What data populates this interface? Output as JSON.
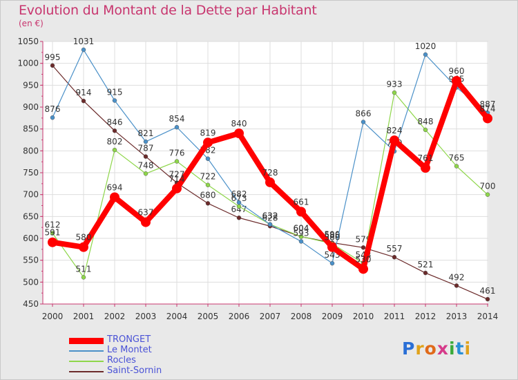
{
  "title": "Evolution du Montant de la Dette par Habitant",
  "subtitle": "(en €)",
  "logo": {
    "letters": [
      "P",
      "r",
      "o",
      "x",
      "i",
      "t",
      "i"
    ],
    "colors": [
      "#2a6fd6",
      "#e0a21a",
      "#e06a1a",
      "#d63a8a",
      "#3aaa3a",
      "#2a8fd6",
      "#e0a21a"
    ]
  },
  "chart_data": {
    "type": "line",
    "x": [
      "2000",
      "2001",
      "2002",
      "2003",
      "2004",
      "2005",
      "2006",
      "2007",
      "2008",
      "2009",
      "2010",
      "2011",
      "2012",
      "2013",
      "2014"
    ],
    "ylim": [
      450,
      1050
    ],
    "yticks": [
      450,
      500,
      550,
      600,
      650,
      700,
      750,
      800,
      850,
      900,
      950,
      1000,
      1050
    ],
    "grid": true,
    "legend_position": "bottom-left",
    "series": [
      {
        "name": "TRONGET",
        "color": "#ff0000",
        "values": [
          591,
          580,
          694,
          637,
          714,
          819,
          840,
          728,
          661,
          580,
          530,
          824,
          761,
          960,
          874
        ],
        "labels": [
          "591",
          "580",
          "694",
          "637",
          "714",
          "819",
          "840",
          "728",
          "661",
          "580",
          "530",
          "824",
          "761",
          "960",
          "874"
        ]
      },
      {
        "name": "Le Montet",
        "color": "#4a90c8",
        "values": [
          876,
          1031,
          915,
          821,
          854,
          782,
          682,
          632,
          593,
          543,
          866,
          799,
          1020,
          945,
          887
        ],
        "labels": [
          "876",
          "1031",
          "915",
          "821",
          "854",
          "782",
          "682",
          "632",
          "593",
          "543",
          "866",
          "799",
          "1020",
          "945",
          "887"
        ]
      },
      {
        "name": "Rocles",
        "color": "#8ed64a",
        "values": [
          612,
          511,
          802,
          748,
          776,
          722,
          673,
          632,
          604,
          588,
          543,
          933,
          848,
          765,
          700
        ],
        "labels": [
          "612",
          "511",
          "802",
          "748",
          "776",
          "722",
          "673",
          "632",
          "604",
          "588",
          "543",
          "933",
          "848",
          "765",
          "700"
        ]
      },
      {
        "name": "Saint-Sornin",
        "color": "#6b2a2a",
        "values": [
          995,
          914,
          846,
          787,
          727,
          680,
          647,
          628,
          604,
          590,
          579,
          557,
          521,
          492,
          461
        ],
        "labels": [
          "995",
          "914",
          "846",
          "787",
          "727",
          "680",
          "647",
          "628",
          "604",
          "590",
          "579",
          "557",
          "521",
          "492",
          "461"
        ]
      }
    ]
  }
}
